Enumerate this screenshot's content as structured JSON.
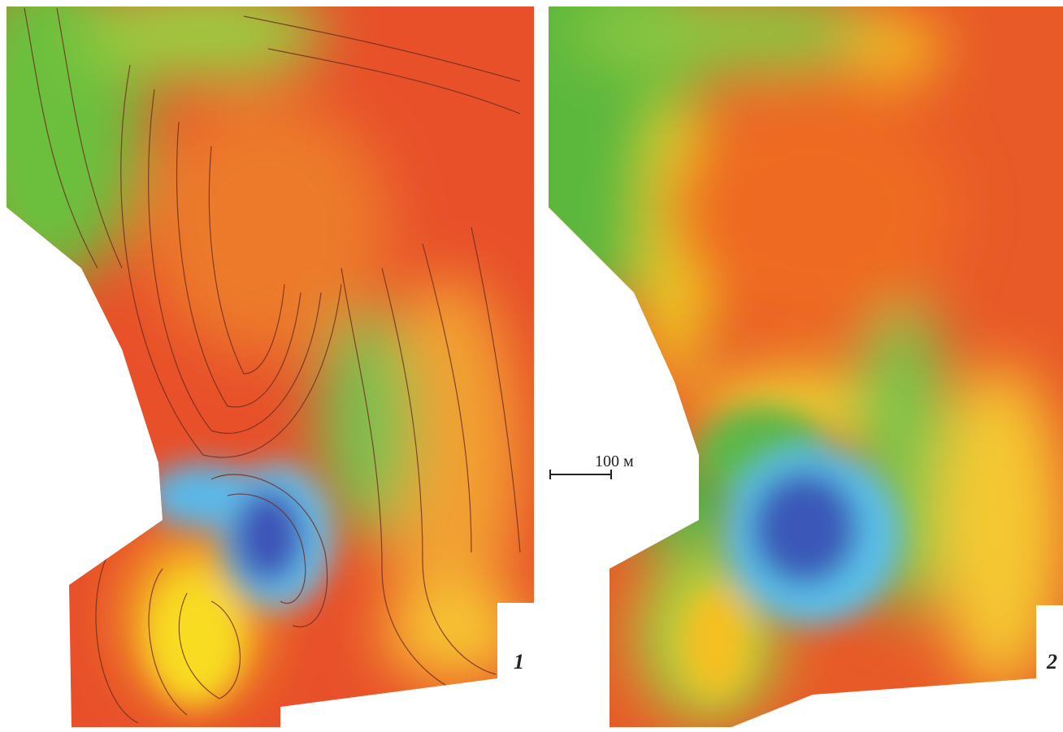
{
  "panels": [
    {
      "label": "1"
    },
    {
      "label": "2"
    }
  ],
  "scale_bar": {
    "label": "100 м"
  }
}
